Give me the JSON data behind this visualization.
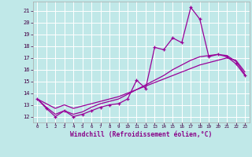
{
  "xlabel": "Windchill (Refroidissement éolien,°C)",
  "bg_color": "#c0e8e8",
  "grid_color": "#ffffff",
  "line_color": "#990099",
  "xlim": [
    -0.5,
    23.5
  ],
  "ylim": [
    11.5,
    21.8
  ],
  "xticks": [
    0,
    1,
    2,
    3,
    4,
    5,
    6,
    7,
    8,
    9,
    10,
    11,
    12,
    13,
    14,
    15,
    16,
    17,
    18,
    19,
    20,
    21,
    22,
    23
  ],
  "yticks": [
    12,
    13,
    14,
    15,
    16,
    17,
    18,
    19,
    20,
    21
  ],
  "line1_x": [
    0,
    1,
    2,
    3,
    4,
    5,
    6,
    7,
    8,
    9,
    10,
    11,
    12,
    13,
    14,
    15,
    16,
    17,
    18,
    19,
    20,
    21,
    22,
    23
  ],
  "line1_y": [
    13.5,
    12.7,
    12.0,
    12.5,
    12.0,
    12.2,
    12.5,
    12.8,
    13.0,
    13.1,
    13.5,
    15.1,
    14.4,
    17.9,
    17.7,
    18.7,
    18.3,
    21.3,
    20.3,
    17.1,
    17.3,
    17.1,
    16.5,
    15.5
  ],
  "line2_x": [
    0,
    1,
    2,
    3,
    4,
    5,
    6,
    7,
    8,
    9,
    10,
    11,
    12,
    13,
    14,
    15,
    16,
    17,
    18,
    19,
    20,
    21,
    22,
    23
  ],
  "line2_y": [
    13.5,
    12.8,
    12.2,
    12.5,
    12.2,
    12.4,
    12.8,
    13.1,
    13.3,
    13.5,
    13.9,
    14.3,
    14.7,
    15.1,
    15.5,
    16.0,
    16.4,
    16.8,
    17.1,
    17.2,
    17.3,
    17.2,
    16.7,
    15.6
  ],
  "line3_x": [
    0,
    1,
    2,
    3,
    4,
    5,
    6,
    7,
    8,
    9,
    10,
    11,
    12,
    13,
    14,
    15,
    16,
    17,
    18,
    19,
    20,
    21,
    22,
    23
  ],
  "line3_y": [
    13.5,
    13.1,
    12.7,
    13.0,
    12.7,
    12.9,
    13.1,
    13.3,
    13.5,
    13.7,
    14.0,
    14.3,
    14.6,
    14.9,
    15.2,
    15.5,
    15.8,
    16.1,
    16.4,
    16.6,
    16.8,
    17.0,
    16.8,
    15.8
  ]
}
